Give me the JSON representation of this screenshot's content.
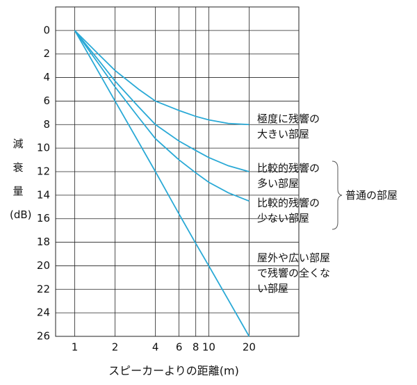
{
  "chart_data": {
    "type": "line",
    "y_label": "減衰量(dB)",
    "x_label": "スピーカーよりの距離(m)",
    "x": [
      1,
      1.5,
      2,
      3,
      4,
      6,
      8,
      10,
      14,
      20
    ],
    "xlim": [
      0.72,
      47
    ],
    "xscale": "log",
    "xticks": [
      1,
      2,
      4,
      6,
      8,
      10,
      20
    ],
    "ylim": [
      -2,
      26
    ],
    "y_inverted": true,
    "yticks": [
      0,
      2,
      4,
      6,
      8,
      10,
      12,
      14,
      16,
      18,
      20,
      22,
      24,
      26
    ],
    "grid": true,
    "series": [
      {
        "name": "極度に残響の大きい部屋",
        "color": "#29a9d6",
        "values": [
          0,
          2.0,
          3.4,
          5.0,
          6.0,
          6.8,
          7.3,
          7.6,
          7.9,
          8.0
        ]
      },
      {
        "name": "比較的残響の多い部屋",
        "color": "#29a9d6",
        "values": [
          0,
          2.5,
          4.3,
          6.5,
          8.0,
          9.4,
          10.2,
          10.8,
          11.5,
          12.0
        ]
      },
      {
        "name": "比較的残響の少ない部屋",
        "color": "#29a9d6",
        "values": [
          0,
          2.8,
          4.8,
          7.4,
          9.2,
          11.0,
          12.1,
          12.9,
          13.8,
          14.5
        ]
      },
      {
        "name": "屋外や広い部屋で残響の全くない部屋",
        "color": "#29a9d6",
        "values": [
          0,
          3.5,
          6.0,
          9.5,
          12.0,
          15.6,
          18.1,
          20.0,
          22.9,
          26.0
        ]
      }
    ],
    "group_annotation": "普通の部屋"
  }
}
